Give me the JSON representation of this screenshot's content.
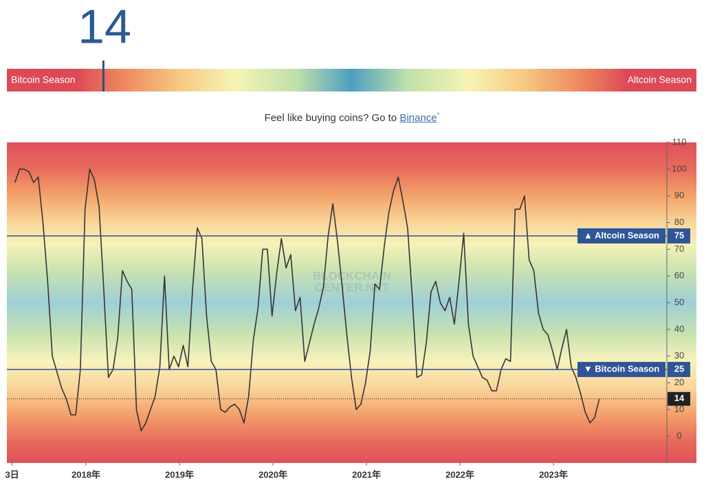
{
  "gauge": {
    "value": 14,
    "range": [
      0,
      100
    ],
    "left_label": "Bitcoin Season",
    "right_label": "Altcoin Season"
  },
  "promo": {
    "text": "Feel like buying coins? Go to ",
    "link": "Binance",
    "mark": "*"
  },
  "chart_data": {
    "type": "line",
    "watermark": [
      "BLOCKCHAIN",
      "CENTER.NET"
    ],
    "x": [
      2017.24,
      2017.29,
      2017.34,
      2017.39,
      2017.44,
      2017.49,
      2017.54,
      2017.59,
      2017.64,
      2017.69,
      2017.74,
      2017.79,
      2017.84,
      2017.89,
      2017.94,
      2017.99,
      2018.04,
      2018.09,
      2018.14,
      2018.19,
      2018.24,
      2018.29,
      2018.34,
      2018.39,
      2018.44,
      2018.49,
      2018.54,
      2018.59,
      2018.64,
      2018.69,
      2018.74,
      2018.79,
      2018.84,
      2018.89,
      2018.94,
      2018.99,
      2019.04,
      2019.09,
      2019.14,
      2019.19,
      2019.24,
      2019.29,
      2019.34,
      2019.39,
      2019.44,
      2019.49,
      2019.54,
      2019.59,
      2019.64,
      2019.69,
      2019.74,
      2019.79,
      2019.84,
      2019.89,
      2019.94,
      2019.99,
      2020.04,
      2020.09,
      2020.14,
      2020.19,
      2020.24,
      2020.29,
      2020.34,
      2020.39,
      2020.44,
      2020.49,
      2020.54,
      2020.59,
      2020.64,
      2020.69,
      2020.74,
      2020.79,
      2020.84,
      2020.89,
      2020.94,
      2020.99,
      2021.04,
      2021.09,
      2021.14,
      2021.19,
      2021.24,
      2021.29,
      2021.34,
      2021.39,
      2021.44,
      2021.49,
      2021.54,
      2021.59,
      2021.64,
      2021.69,
      2021.74,
      2021.79,
      2021.84,
      2021.89,
      2021.94,
      2021.99,
      2022.04,
      2022.09,
      2022.14,
      2022.19,
      2022.24,
      2022.29,
      2022.34,
      2022.39,
      2022.44,
      2022.49,
      2022.54,
      2022.59,
      2022.64,
      2022.69,
      2022.74,
      2022.79,
      2022.84,
      2022.89,
      2022.94,
      2022.99,
      2023.04,
      2023.09,
      2023.14,
      2023.19,
      2023.24,
      2023.29,
      2023.34,
      2023.39,
      2023.44,
      2023.49
    ],
    "series": [
      {
        "color": "#333333",
        "values": [
          95,
          100,
          100,
          99,
          95,
          97,
          80,
          58,
          30,
          24,
          18,
          14,
          8,
          8,
          25,
          85,
          100,
          96,
          86,
          55,
          22,
          25,
          37,
          62,
          58,
          55,
          10,
          2,
          5,
          10,
          15,
          26,
          60,
          25,
          30,
          26,
          34,
          26,
          55,
          78,
          74,
          45,
          28,
          25,
          10,
          9,
          11,
          12,
          10,
          5,
          15,
          36,
          48,
          70,
          70,
          45,
          61,
          74,
          63,
          68,
          47,
          52,
          28,
          35,
          42,
          48,
          56,
          75,
          87,
          73,
          56,
          38,
          22,
          10,
          12,
          20,
          32,
          57,
          55,
          71,
          84,
          92,
          97,
          88,
          78,
          52,
          22,
          23,
          35,
          54,
          58,
          50,
          47,
          52,
          42,
          58,
          76,
          42,
          30,
          26,
          22,
          21,
          17,
          17,
          25,
          29,
          28,
          85,
          85,
          90,
          66,
          62,
          46,
          40,
          38,
          32,
          25,
          33,
          40,
          26,
          22,
          16,
          9,
          5,
          7,
          14
        ]
      }
    ],
    "xlim": [
      2017.154,
      2024.213
    ],
    "xticks": [
      {
        "value": 2017.21,
        "label": "3日"
      },
      {
        "value": 2018,
        "label": "2018年"
      },
      {
        "value": 2019,
        "label": "2019年"
      },
      {
        "value": 2020,
        "label": "2020年"
      },
      {
        "value": 2021,
        "label": "2021年"
      },
      {
        "value": 2022,
        "label": "2022年"
      },
      {
        "value": 2023,
        "label": "2023年"
      }
    ],
    "ylim": [
      -10,
      110
    ],
    "yticks": [
      0,
      10,
      20,
      30,
      40,
      50,
      60,
      70,
      80,
      90,
      100,
      110
    ],
    "reference_lines": [
      {
        "value": 75,
        "label": "▲ Altcoin Season",
        "color": "#2f5597"
      },
      {
        "value": 25,
        "label": "▼ Bitcoin Season",
        "color": "#2f5597"
      }
    ],
    "current_line": {
      "value": 14,
      "color": "#222222"
    }
  }
}
